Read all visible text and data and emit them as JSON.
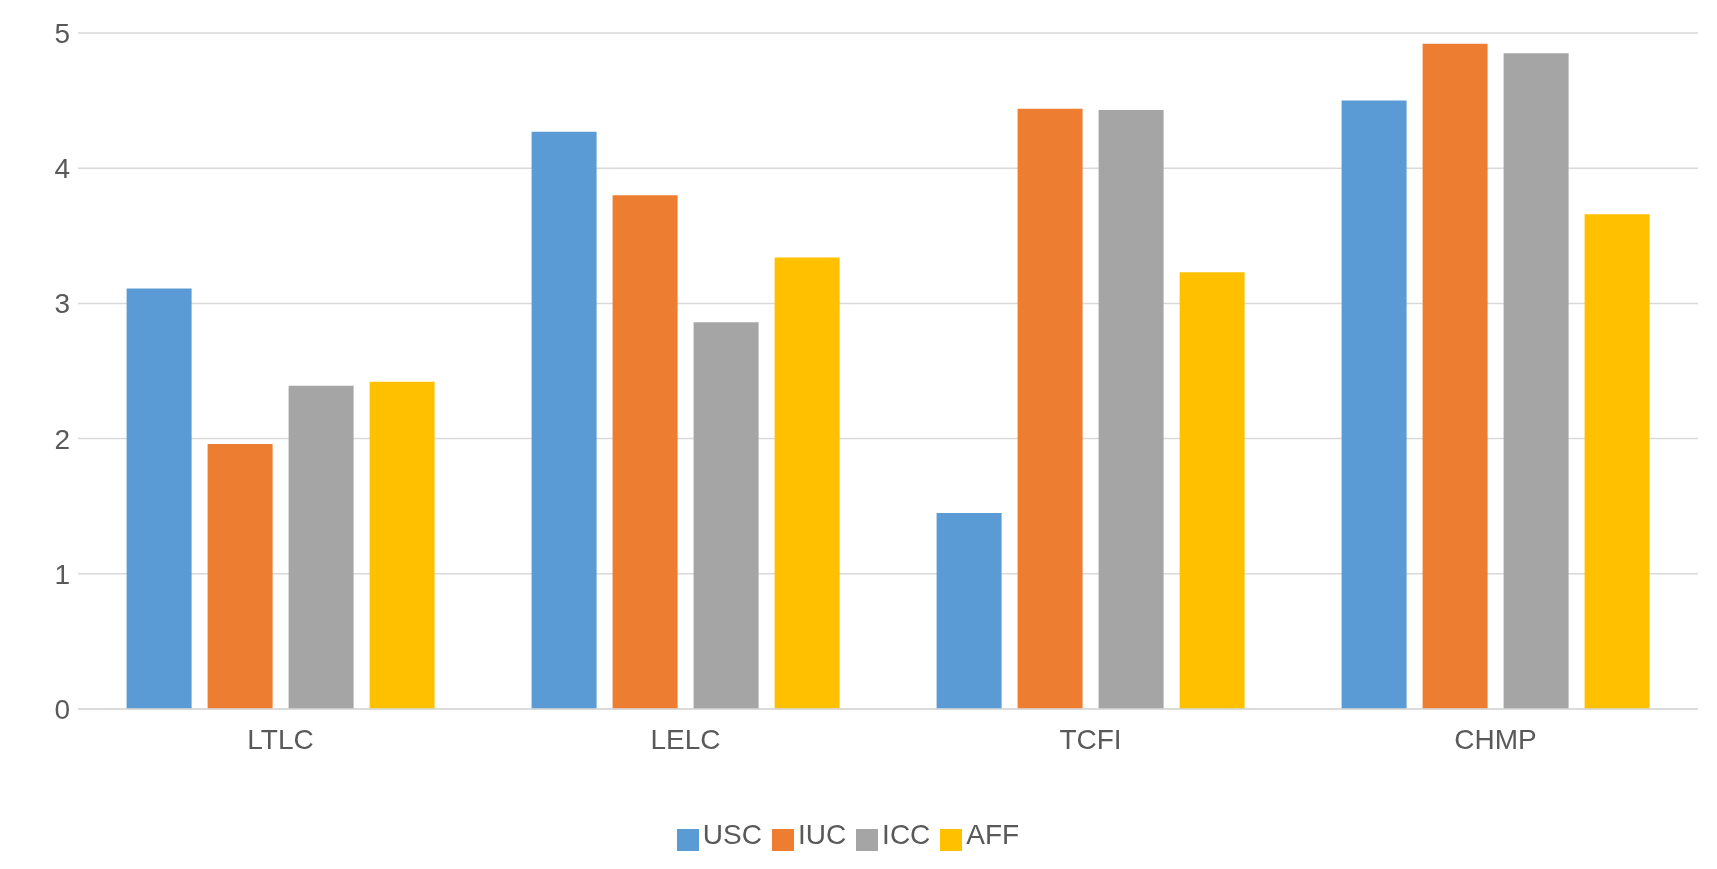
{
  "chart_data": {
    "type": "bar",
    "categories": [
      "LTLC",
      "LELC",
      "TCFI",
      "CHMP"
    ],
    "series": [
      {
        "name": "USC",
        "color": "#5b9bd5",
        "values": [
          3.11,
          4.27,
          1.45,
          4.5
        ]
      },
      {
        "name": "IUC",
        "color": "#ed7d31",
        "values": [
          1.96,
          3.8,
          4.44,
          4.92
        ]
      },
      {
        "name": "ICC",
        "color": "#a5a5a5",
        "values": [
          2.39,
          2.86,
          4.43,
          4.85
        ]
      },
      {
        "name": "AFF",
        "color": "#ffc000",
        "values": [
          2.42,
          3.34,
          3.23,
          3.66
        ]
      }
    ],
    "ylim": [
      0,
      5
    ],
    "yticks": [
      0,
      1,
      2,
      3,
      4,
      5
    ],
    "grid": "y",
    "legend": "bottom"
  }
}
